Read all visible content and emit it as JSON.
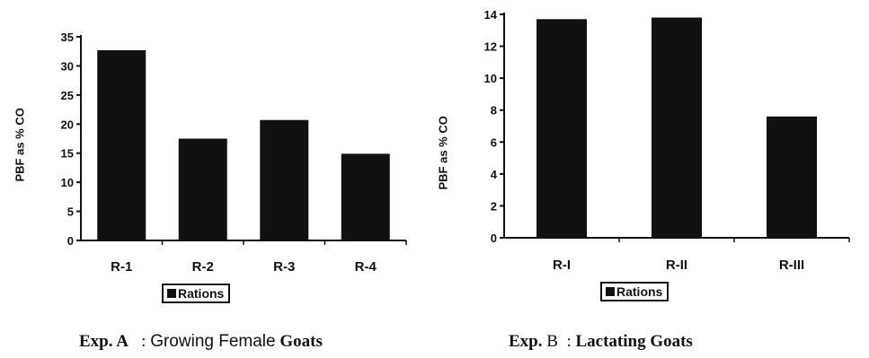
{
  "chart_data": [
    {
      "type": "bar",
      "categories": [
        "R-1",
        "R-2",
        "R-3",
        "R-4"
      ],
      "values": [
        32.7,
        17.5,
        20.7,
        14.9
      ],
      "ylabel": "PBF as % CO",
      "ylim": [
        0,
        35
      ],
      "yticks": [
        0,
        5,
        10,
        15,
        20,
        25,
        30,
        35
      ],
      "legend": "Rations",
      "legend_placement": "bottom",
      "grid": false,
      "bar_color": "#111111",
      "caption": {
        "exp": "Exp. A",
        "sep": ":",
        "text": "Growing Female",
        "bold_word": "Goats"
      }
    },
    {
      "type": "bar",
      "categories": [
        "R-I",
        "R-II",
        "R-III"
      ],
      "values": [
        13.7,
        13.8,
        7.6
      ],
      "ylabel": "PBF as % CO",
      "ylim": [
        0,
        14
      ],
      "yticks": [
        0,
        2,
        4,
        6,
        8,
        10,
        12,
        14
      ],
      "legend": "Rations",
      "legend_placement": "bottom",
      "grid": false,
      "bar_color": "#111111",
      "caption": {
        "exp": "Exp.",
        "exp2": "B",
        "sep": ":",
        "text": "Lactating Goats"
      }
    }
  ]
}
